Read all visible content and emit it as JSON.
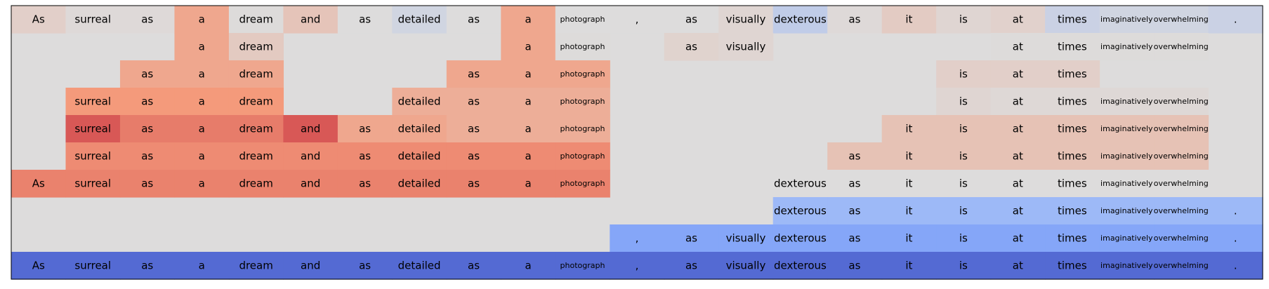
{
  "chart_data": {
    "type": "heatmap",
    "title": "",
    "xlabel": "",
    "ylabel": "",
    "grid": false,
    "legend": "none",
    "colormap": "coolwarm",
    "color_range": [
      -1,
      1
    ],
    "tokens": [
      "As",
      "surreal",
      "as",
      "a",
      "dream",
      "and",
      "as",
      "detailed",
      "as",
      "a",
      "photograph",
      ",",
      "as",
      "visually",
      "dexterous",
      "as",
      "it",
      "is",
      "at",
      "times",
      "imaginatively",
      "overwhelming",
      "."
    ],
    "rows": [
      {
        "shown": [
          1,
          1,
          1,
          1,
          1,
          1,
          1,
          1,
          1,
          1,
          1,
          1,
          1,
          1,
          1,
          1,
          1,
          1,
          1,
          1,
          1,
          1,
          1
        ],
        "values": [
          0.1,
          0.02,
          0.02,
          0.4,
          0.01,
          0.18,
          0.0,
          -0.08,
          0.0,
          0.4,
          0.0,
          0.0,
          0.0,
          0.05,
          -0.18,
          0.02,
          0.13,
          0.05,
          0.08,
          -0.12,
          -0.08,
          -0.08,
          -0.12
        ]
      },
      {
        "shown": [
          0,
          0,
          0,
          1,
          1,
          0,
          0,
          0,
          0,
          1,
          1,
          0,
          1,
          1,
          0,
          0,
          0,
          0,
          1,
          1,
          1,
          1,
          0
        ],
        "values": [
          0,
          0,
          0,
          0.4,
          0.14,
          0,
          0,
          0,
          0,
          0.4,
          0.01,
          0,
          0.07,
          0.05,
          0,
          0,
          0,
          0,
          0.01,
          0.01,
          0.01,
          0.01,
          0
        ]
      },
      {
        "shown": [
          0,
          0,
          1,
          1,
          1,
          0,
          0,
          0,
          1,
          1,
          1,
          0,
          0,
          0,
          0,
          0,
          0,
          1,
          1,
          1,
          0,
          0,
          0
        ],
        "values": [
          0,
          0,
          0.4,
          0.4,
          0.4,
          0,
          0,
          0,
          0.4,
          0.4,
          0.4,
          0,
          0,
          0,
          0,
          0,
          0,
          0.1,
          0.1,
          0.1,
          0,
          0,
          0
        ]
      },
      {
        "shown": [
          0,
          1,
          1,
          1,
          1,
          0,
          0,
          1,
          1,
          1,
          1,
          0,
          0,
          0,
          0,
          0,
          0,
          1,
          1,
          1,
          1,
          1,
          0
        ],
        "values": [
          0,
          0.5,
          0.5,
          0.5,
          0.5,
          0,
          0,
          0.35,
          0.35,
          0.35,
          0.35,
          0,
          0,
          0,
          0,
          0,
          0,
          0.05,
          0.03,
          0.03,
          0.03,
          0.03,
          0
        ]
      },
      {
        "shown": [
          0,
          1,
          1,
          1,
          1,
          1,
          1,
          1,
          1,
          1,
          1,
          0,
          0,
          0,
          0,
          0,
          1,
          1,
          1,
          1,
          1,
          1,
          0
        ],
        "values": [
          0,
          0.72,
          0.6,
          0.6,
          0.6,
          0.72,
          0.4,
          0.4,
          0.35,
          0.35,
          0.35,
          0,
          0,
          0,
          0,
          0,
          0.2,
          0.2,
          0.2,
          0.2,
          0.2,
          0.2,
          0
        ]
      },
      {
        "shown": [
          0,
          1,
          1,
          1,
          1,
          1,
          1,
          1,
          1,
          1,
          1,
          0,
          0,
          0,
          0,
          1,
          1,
          1,
          1,
          1,
          1,
          1,
          0
        ],
        "values": [
          0,
          0.55,
          0.55,
          0.55,
          0.55,
          0.55,
          0.55,
          0.55,
          0.55,
          0.55,
          0.55,
          0,
          0,
          0,
          0,
          0.2,
          0.2,
          0.2,
          0.2,
          0.2,
          0.2,
          0.2,
          0
        ]
      },
      {
        "shown": [
          1,
          1,
          1,
          1,
          1,
          1,
          1,
          1,
          1,
          1,
          1,
          0,
          0,
          0,
          1,
          1,
          1,
          1,
          1,
          1,
          1,
          1,
          0
        ],
        "values": [
          0.58,
          0.58,
          0.58,
          0.58,
          0.58,
          0.58,
          0.58,
          0.58,
          0.58,
          0.58,
          0.58,
          0,
          0,
          0,
          0.0,
          0.0,
          0.0,
          0.0,
          0.0,
          0.0,
          0.0,
          0.0,
          0
        ]
      },
      {
        "shown": [
          0,
          0,
          0,
          0,
          0,
          0,
          0,
          0,
          0,
          0,
          0,
          0,
          0,
          0,
          1,
          1,
          1,
          1,
          1,
          1,
          1,
          1,
          1
        ],
        "values": [
          0,
          0,
          0,
          0,
          0,
          0,
          0,
          0,
          0,
          0,
          0,
          0,
          0,
          0,
          -0.4,
          -0.4,
          -0.4,
          -0.4,
          -0.4,
          -0.4,
          -0.4,
          -0.4,
          -0.4
        ]
      },
      {
        "shown": [
          0,
          0,
          0,
          0,
          0,
          0,
          0,
          0,
          0,
          0,
          0,
          1,
          1,
          1,
          1,
          1,
          1,
          1,
          1,
          1,
          1,
          1,
          1
        ],
        "values": [
          0,
          0,
          0,
          0,
          0,
          0,
          0,
          0,
          0,
          0,
          0,
          -0.55,
          -0.55,
          -0.55,
          -0.55,
          -0.55,
          -0.55,
          -0.55,
          -0.55,
          -0.55,
          -0.55,
          -0.55,
          -0.55
        ]
      },
      {
        "shown": [
          1,
          1,
          1,
          1,
          1,
          1,
          1,
          1,
          1,
          1,
          1,
          1,
          1,
          1,
          1,
          1,
          1,
          1,
          1,
          1,
          1,
          1,
          1
        ],
        "values": [
          -0.85,
          -0.85,
          -0.85,
          -0.85,
          -0.85,
          -0.85,
          -0.85,
          -0.85,
          -0.85,
          -0.85,
          -0.85,
          -0.85,
          -0.85,
          -0.85,
          -0.85,
          -0.85,
          -0.85,
          -0.85,
          -0.85,
          -0.85,
          -0.85,
          -0.85,
          -0.85
        ]
      }
    ]
  }
}
